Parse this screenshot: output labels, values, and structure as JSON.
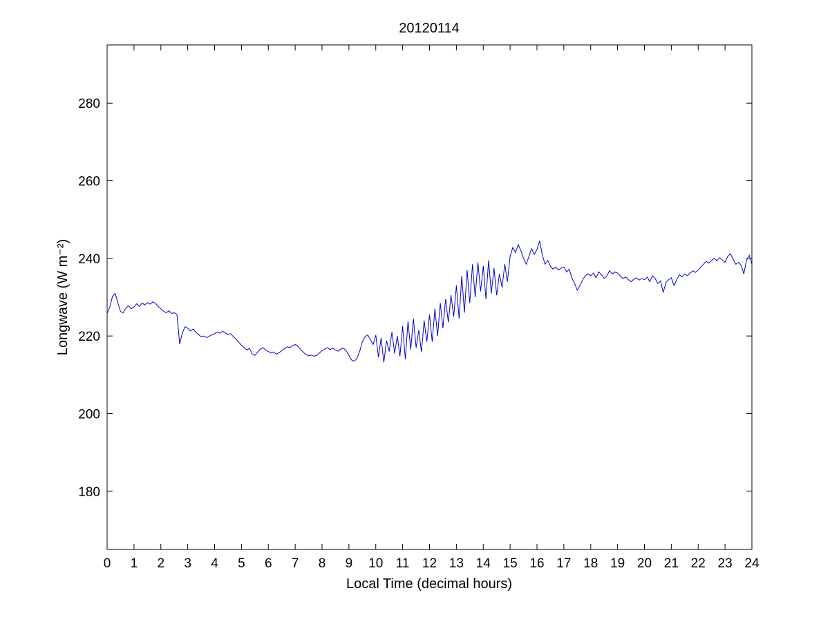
{
  "chart_data": {
    "type": "line",
    "title": "20120114",
    "xlabel": "Local Time (decimal hours)",
    "ylabel": "Longwave (W m⁻²)",
    "xlim": [
      0,
      24
    ],
    "ylim": [
      165,
      295
    ],
    "xticks": [
      0,
      1,
      2,
      3,
      4,
      5,
      6,
      7,
      8,
      9,
      10,
      11,
      12,
      13,
      14,
      15,
      16,
      17,
      18,
      19,
      20,
      21,
      22,
      23,
      24
    ],
    "yticks": [
      180,
      200,
      220,
      240,
      260,
      280
    ],
    "grid": false,
    "legend": "none",
    "line_color": "#0000CC",
    "axis_color": "#000000",
    "background_color": "#FFFFFF",
    "series": [
      {
        "name": "Longwave",
        "x_start": 0,
        "x_step": 0.1,
        "values": [
          225.8,
          227.5,
          230.2,
          231.0,
          228.5,
          226.3,
          226.0,
          227.2,
          227.8,
          227.0,
          227.5,
          228.3,
          227.6,
          228.5,
          228.0,
          228.6,
          228.2,
          228.8,
          228.4,
          227.6,
          227.0,
          226.4,
          226.0,
          226.5,
          225.8,
          226.0,
          225.5,
          217.9,
          220.8,
          222.4,
          222.0,
          221.3,
          221.8,
          221.0,
          220.4,
          219.8,
          220.0,
          219.6,
          219.9,
          220.3,
          220.6,
          221.0,
          220.7,
          221.2,
          220.8,
          220.4,
          220.6,
          219.8,
          219.2,
          218.4,
          217.6,
          217.0,
          216.4,
          216.8,
          215.4,
          215.0,
          215.8,
          216.6,
          217.0,
          216.4,
          216.0,
          215.6,
          215.9,
          215.3,
          215.7,
          216.2,
          216.8,
          217.2,
          217.0,
          217.5,
          217.8,
          217.3,
          216.6,
          215.8,
          215.2,
          214.9,
          215.1,
          214.8,
          215.0,
          215.6,
          216.2,
          216.6,
          217.0,
          216.5,
          216.9,
          216.4,
          216.1,
          216.6,
          216.9,
          216.2,
          215.0,
          213.8,
          213.5,
          214.2,
          216.0,
          218.5,
          219.8,
          220.3,
          219.0,
          217.8,
          220.2,
          214.5,
          219.5,
          213.2,
          218.8,
          216.0,
          221.0,
          215.5,
          220.0,
          214.8,
          222.5,
          214.0,
          223.8,
          216.5,
          224.5,
          217.0,
          221.5,
          215.8,
          224.0,
          218.5,
          225.5,
          218.5,
          227.0,
          220.0,
          228.5,
          222.0,
          229.5,
          223.5,
          230.5,
          225.0,
          233.0,
          224.5,
          235.5,
          226.0,
          237.0,
          228.5,
          238.5,
          230.0,
          239.0,
          231.5,
          238.0,
          229.5,
          239.5,
          231.0,
          237.5,
          230.5,
          236.0,
          232.5,
          238.5,
          234.0,
          240.5,
          242.8,
          241.5,
          243.5,
          242.0,
          240.0,
          238.5,
          240.5,
          242.5,
          241.0,
          242.3,
          244.5,
          240.8,
          238.5,
          239.5,
          238.0,
          237.2,
          237.8,
          237.0,
          237.5,
          237.8,
          236.5,
          237.2,
          235.0,
          233.5,
          231.8,
          233.0,
          234.5,
          235.5,
          236.0,
          235.5,
          236.2,
          235.0,
          236.5,
          235.8,
          234.8,
          235.5,
          236.8,
          236.0,
          236.5,
          236.2,
          235.5,
          234.8,
          235.2,
          234.5,
          234.0,
          234.6,
          235.0,
          234.4,
          234.8,
          234.5,
          235.2,
          234.0,
          235.5,
          234.8,
          233.5,
          234.2,
          231.2,
          233.8,
          234.5,
          235.0,
          233.0,
          234.5,
          235.8,
          235.2,
          236.0,
          235.5,
          236.2,
          236.8,
          236.4,
          237.0,
          237.8,
          238.5,
          239.2,
          238.8,
          239.5,
          240.0,
          239.4,
          240.2,
          239.6,
          239.0,
          240.5,
          241.2,
          239.8,
          238.5,
          239.0,
          238.2,
          236.0,
          239.5,
          240.8,
          238.5
        ]
      }
    ]
  }
}
